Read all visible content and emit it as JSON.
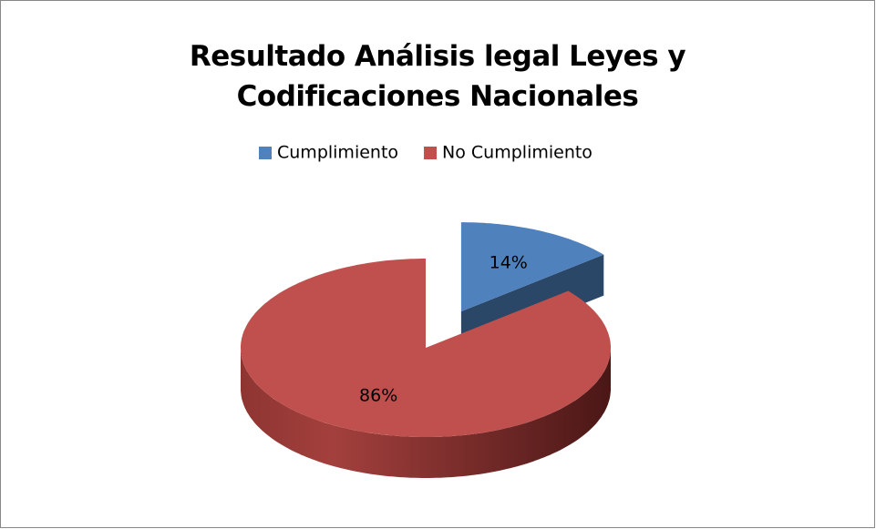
{
  "chart_data": {
    "type": "pie",
    "title": "Resultado Análisis legal  Leyes y Codificaciones Nacionales",
    "categories": [
      "Cumplimiento",
      "No Cumplimiento"
    ],
    "values": [
      14,
      86
    ],
    "value_labels": [
      "14%",
      "86%"
    ],
    "colors": [
      "#4f81bd",
      "#c0504d"
    ],
    "legend": "top",
    "explode": [
      true,
      false
    ]
  }
}
